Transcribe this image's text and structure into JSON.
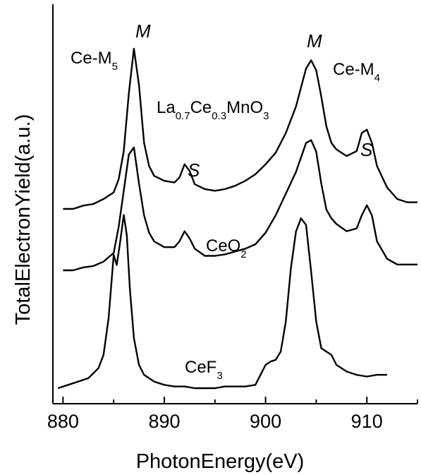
{
  "chart_data": {
    "type": "line",
    "xlabel": "PhotonEnergy(eV)",
    "ylabel": "TotalElectronYield(a.u.)",
    "xlim": [
      879,
      915
    ],
    "xticks": [
      880,
      890,
      900,
      910
    ],
    "x_tick_labels": [
      "880",
      "890",
      "900",
      "910"
    ],
    "y_ticks_shown": false,
    "grid": false,
    "series": [
      {
        "name": "La0.7Ce0.3MnO3",
        "x": [
          880,
          881,
          882,
          883,
          884,
          885,
          885.5,
          886,
          886.5,
          887,
          887.5,
          888,
          888.5,
          889,
          890,
          891,
          891.5,
          892,
          892.5,
          893,
          894,
          895,
          896,
          897,
          898,
          899,
          900,
          901,
          902,
          903,
          904,
          904.5,
          905,
          905.5,
          906,
          906.5,
          907,
          908,
          909,
          909.5,
          910,
          910.5,
          911,
          912,
          913,
          914,
          915
        ],
        "y": [
          0.0,
          0.0,
          0.02,
          0.03,
          0.06,
          0.1,
          0.18,
          0.35,
          0.7,
          0.97,
          0.75,
          0.4,
          0.26,
          0.2,
          0.17,
          0.16,
          0.19,
          0.27,
          0.23,
          0.15,
          0.12,
          0.11,
          0.12,
          0.14,
          0.17,
          0.21,
          0.27,
          0.34,
          0.46,
          0.62,
          0.85,
          0.9,
          0.84,
          0.68,
          0.5,
          0.4,
          0.36,
          0.32,
          0.35,
          0.46,
          0.48,
          0.4,
          0.26,
          0.13,
          0.06,
          0.04,
          0.04
        ]
      },
      {
        "name": "CeO2",
        "x": [
          880,
          881,
          882,
          883,
          884,
          885,
          885.5,
          886,
          886.5,
          887,
          887.5,
          888,
          888.5,
          889,
          890,
          891,
          891.5,
          892,
          892.5,
          893,
          894,
          895,
          896,
          897,
          898,
          899,
          900,
          901,
          902,
          903,
          904,
          904.5,
          905,
          905.5,
          906,
          906.5,
          907,
          908,
          909,
          909.5,
          910,
          910.5,
          911,
          912,
          913,
          914,
          915
        ],
        "y": [
          0.0,
          0.0,
          0.02,
          0.03,
          0.06,
          0.12,
          0.3,
          0.55,
          0.8,
          0.85,
          0.6,
          0.38,
          0.26,
          0.2,
          0.16,
          0.16,
          0.2,
          0.27,
          0.22,
          0.15,
          0.1,
          0.1,
          0.11,
          0.13,
          0.15,
          0.18,
          0.26,
          0.38,
          0.53,
          0.68,
          0.88,
          0.9,
          0.82,
          0.6,
          0.42,
          0.36,
          0.32,
          0.27,
          0.29,
          0.38,
          0.45,
          0.38,
          0.2,
          0.08,
          0.04,
          0.04,
          0.04
        ]
      },
      {
        "name": "CeF3",
        "x": [
          879.5,
          880.5,
          881.5,
          882.5,
          883,
          883.5,
          884,
          884.5,
          885,
          885.3,
          885.6,
          886,
          886.3,
          886.6,
          887,
          887.5,
          888,
          889,
          890,
          891,
          892,
          893,
          894,
          895,
          896,
          897,
          898,
          899,
          899.5,
          900,
          900.5,
          901,
          901.5,
          902,
          902.5,
          903,
          903.5,
          904,
          904.5,
          905,
          905.5,
          906,
          906.5,
          907,
          908,
          909,
          910,
          911,
          912
        ],
        "y": [
          0.0,
          0.02,
          0.04,
          0.06,
          0.09,
          0.12,
          0.2,
          0.42,
          0.8,
          0.74,
          0.86,
          1.04,
          0.92,
          0.6,
          0.3,
          0.14,
          0.08,
          0.04,
          0.02,
          0.01,
          0.01,
          0.0,
          0.0,
          0.0,
          0.01,
          0.01,
          0.01,
          0.02,
          0.08,
          0.14,
          0.16,
          0.17,
          0.22,
          0.4,
          0.72,
          0.94,
          1.02,
          0.98,
          0.7,
          0.4,
          0.24,
          0.22,
          0.2,
          0.14,
          0.1,
          0.08,
          0.07,
          0.08,
          0.08
        ]
      }
    ],
    "annotations": {
      "peak_m_left": "M",
      "peak_m_right": "M",
      "satellite_s_left": "S",
      "satellite_s_right": "S",
      "edge_m5": {
        "base": "Ce-M",
        "sub": "5"
      },
      "edge_m4": {
        "base": "Ce-M",
        "sub": "4"
      },
      "label_lcmo": {
        "parts": [
          "La",
          "0.7",
          "Ce",
          "0.3",
          "MnO",
          "3"
        ]
      },
      "label_ceo2": {
        "parts": [
          "CeO",
          "2"
        ]
      },
      "label_cef3": {
        "parts": [
          "CeF",
          "3"
        ]
      }
    }
  }
}
